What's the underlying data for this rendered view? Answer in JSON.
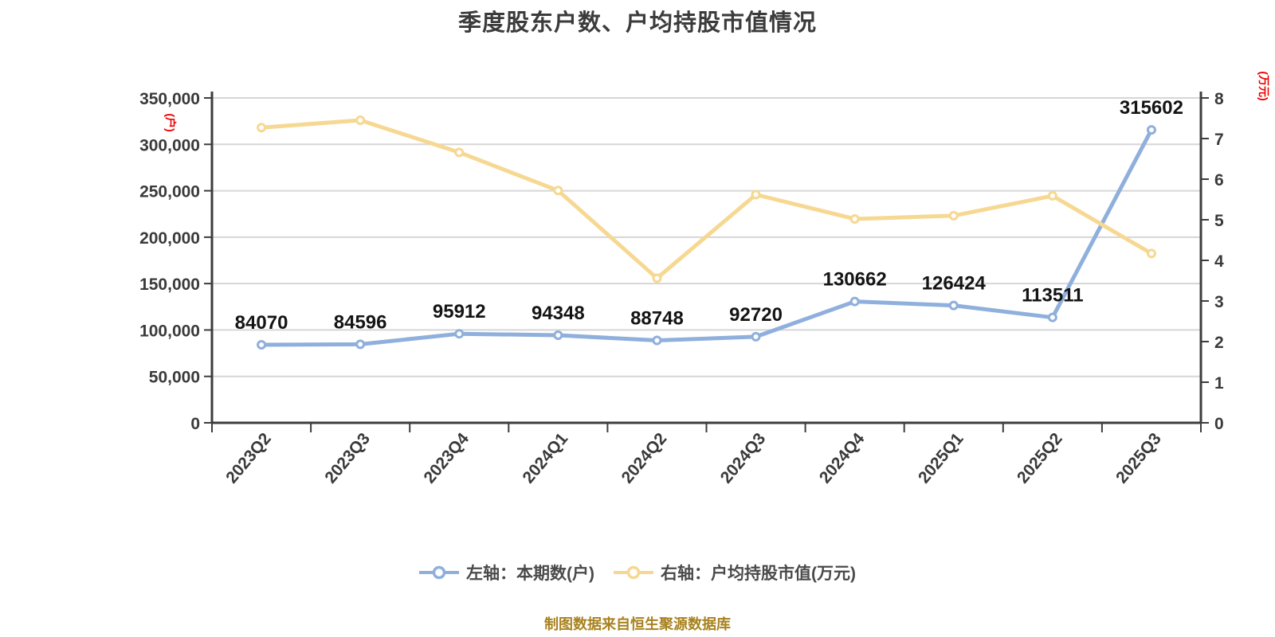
{
  "footer": "制图数据来自恒生聚源数据库",
  "colors": {
    "series_left": "#8fafdc",
    "series_right": "#f6d892",
    "grid": "#d6d6d6",
    "axis": "#3d3d3d",
    "tick_text": "#3a3a3a",
    "data_label": "#141414",
    "axis_unit_red": "#ec0000",
    "legend_text": "#4a4a4a",
    "footer_text": "#a8821e"
  },
  "chart_data": {
    "type": "line",
    "title": "季度股东户数、户均持股市值情况",
    "grid": true,
    "legend_position": "bottom",
    "categories": [
      "2023Q2",
      "2023Q3",
      "2023Q4",
      "2024Q1",
      "2024Q2",
      "2024Q3",
      "2024Q4",
      "2025Q1",
      "2025Q2",
      "2025Q3"
    ],
    "series": [
      {
        "name": "左轴：本期数(户)",
        "yaxis": "left",
        "color": "#8fafdc",
        "labels_shown": true,
        "values": [
          84070,
          84596,
          95912,
          94348,
          88748,
          92720,
          130662,
          126424,
          113511,
          315602
        ]
      },
      {
        "name": "右轴：户均持股市值(万元)",
        "yaxis": "right",
        "color": "#f6d892",
        "labels_shown": false,
        "values": [
          7.27,
          7.45,
          6.66,
          5.72,
          3.56,
          5.62,
          5.02,
          5.1,
          5.59,
          4.17
        ]
      }
    ],
    "left_axis": {
      "unit": "(户)",
      "min": 0,
      "max": 350000,
      "step": 50000,
      "tick_labels": [
        "0",
        "50,000",
        "100,000",
        "150,000",
        "200,000",
        "250,000",
        "300,000",
        "350,000"
      ]
    },
    "right_axis": {
      "unit": "(万元)",
      "min": 0,
      "max": 8,
      "step": 1,
      "tick_labels": [
        "0",
        "1",
        "2",
        "3",
        "4",
        "5",
        "6",
        "7",
        "8"
      ]
    }
  }
}
